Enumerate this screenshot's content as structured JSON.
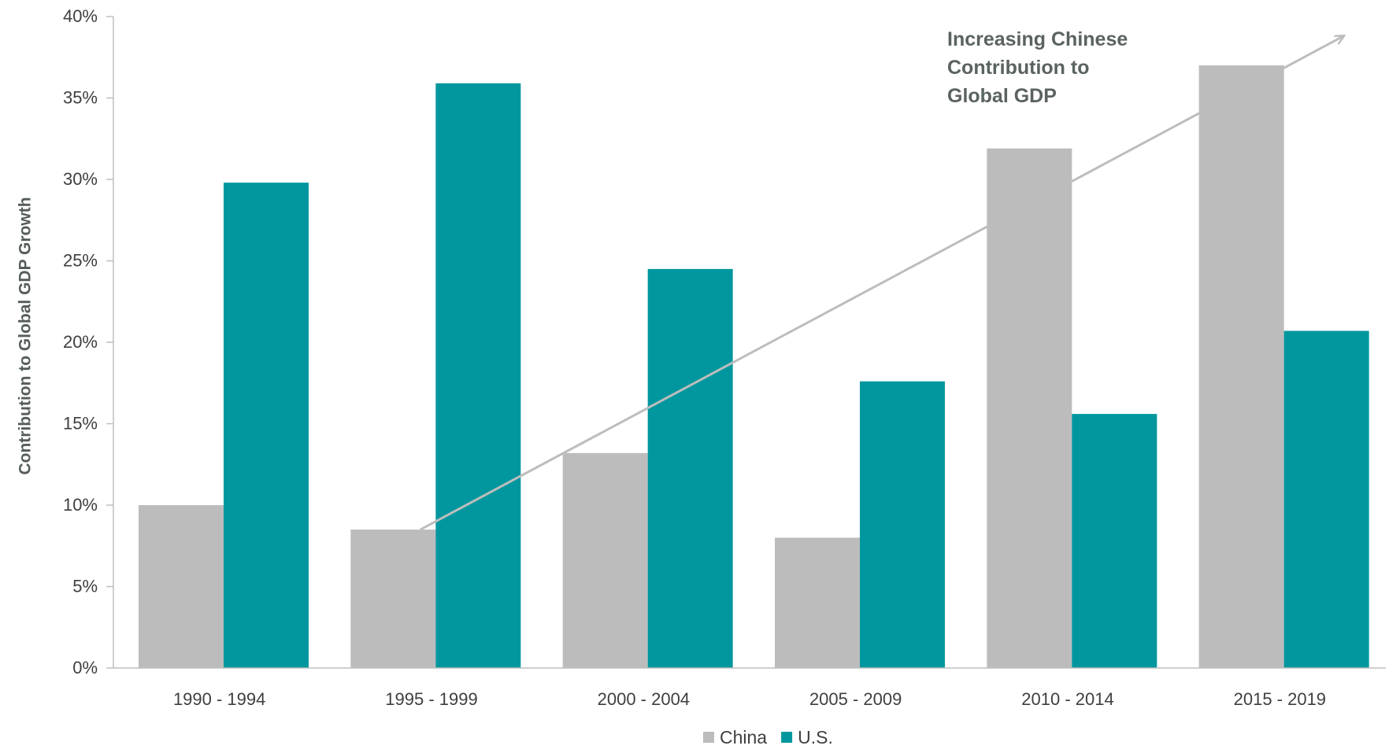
{
  "chart_data": {
    "type": "bar",
    "categories": [
      "1990 - 1994",
      "1995 - 1999",
      "2000 - 2004",
      "2005 - 2009",
      "2010 - 2014",
      "2015 - 2019"
    ],
    "series": [
      {
        "name": "China",
        "values": [
          10.0,
          8.5,
          13.2,
          8.0,
          31.9,
          37.0
        ],
        "color": "#bcbcbc"
      },
      {
        "name": "U.S.",
        "values": [
          29.8,
          35.9,
          24.5,
          17.6,
          15.6,
          20.7
        ],
        "color": "#02979e"
      }
    ],
    "title": "",
    "xlabel": "",
    "ylabel": "Contribution to Global GDP Growth",
    "ylim": [
      0,
      40
    ],
    "yticks": [
      "0%",
      "5%",
      "10%",
      "15%",
      "20%",
      "25%",
      "30%",
      "35%",
      "40%"
    ],
    "grid": false,
    "legend": "bottom-center",
    "annotation": {
      "lines": [
        "Increasing Chinese",
        "Contribution to",
        "Global GDP"
      ]
    }
  }
}
